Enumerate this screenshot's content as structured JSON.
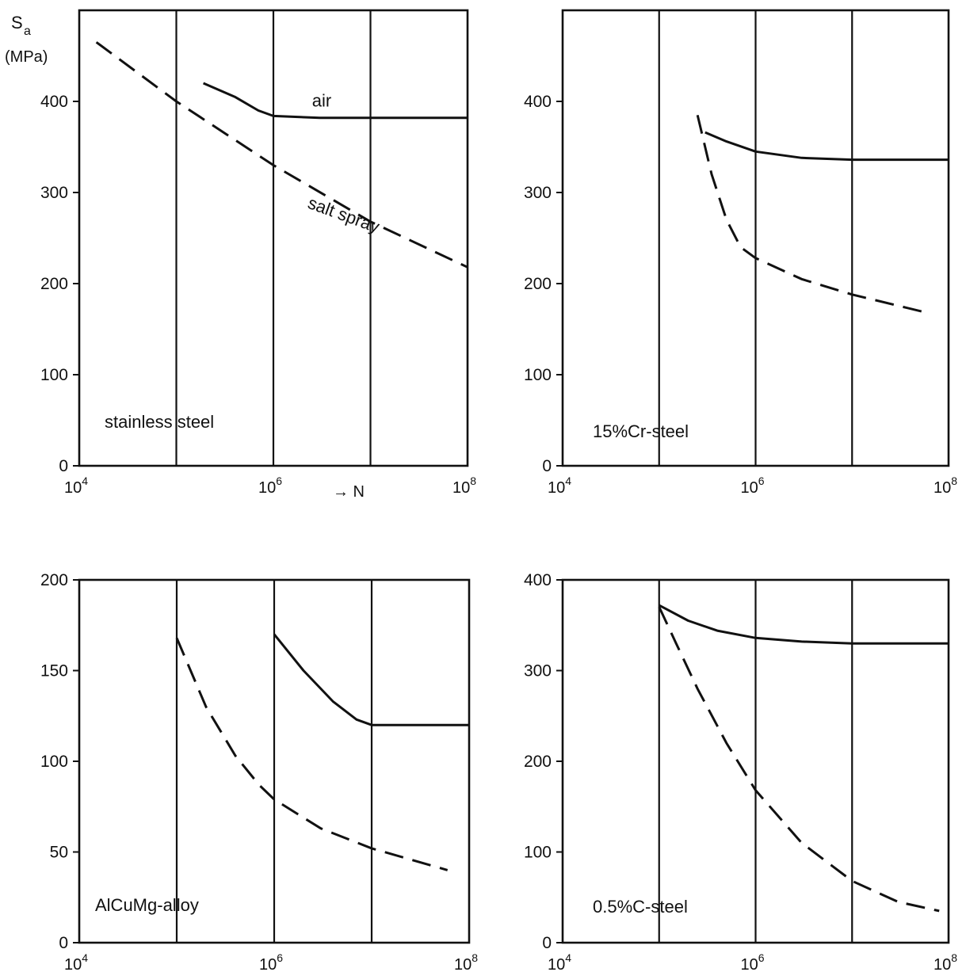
{
  "figure": {
    "ylabel_symbol": "S",
    "ylabel_subscript": "a",
    "ylabel_unit": "(MPa)",
    "xlabel_arrow": "→ N"
  },
  "chart_data": [
    {
      "type": "line",
      "panel": "top-left",
      "annotation": "stainless steel",
      "xscale": "log",
      "xlim": [
        10000,
        100000000
      ],
      "ylim": [
        0,
        500
      ],
      "yticks": [
        0,
        100,
        200,
        300,
        400
      ],
      "xticks": [
        {
          "value": 10000,
          "base": "10",
          "exp": "4"
        },
        {
          "value": 1000000,
          "base": "10",
          "exp": "6"
        },
        {
          "value": 100000000,
          "base": "10",
          "exp": "8"
        }
      ],
      "vgrid": [
        100000,
        1000000,
        10000000
      ],
      "grid": "vertical lines only",
      "series": [
        {
          "name": "air",
          "style": "solid",
          "x": [
            190000,
            400000,
            700000,
            1000000,
            3000000,
            100000000
          ],
          "y": [
            420,
            405,
            390,
            384,
            382,
            382
          ]
        },
        {
          "name": "salt spray",
          "style": "dashed",
          "x": [
            15000,
            100000,
            1000000,
            10000000,
            100000000
          ],
          "y": [
            465,
            400,
            330,
            268,
            218
          ]
        }
      ]
    },
    {
      "type": "line",
      "panel": "top-right",
      "annotation": "15%Cr-steel",
      "xscale": "log",
      "xlim": [
        10000,
        100000000
      ],
      "ylim": [
        0,
        500
      ],
      "yticks": [
        0,
        100,
        200,
        300,
        400
      ],
      "xticks": [
        {
          "value": 10000,
          "base": "10",
          "exp": "4"
        },
        {
          "value": 1000000,
          "base": "10",
          "exp": "6"
        },
        {
          "value": 100000000,
          "base": "10",
          "exp": "8"
        }
      ],
      "vgrid": [
        100000,
        1000000,
        10000000
      ],
      "grid": "vertical lines only",
      "series": [
        {
          "style": "solid",
          "x": [
            300000,
            500000,
            1000000,
            3000000,
            10000000,
            100000000
          ],
          "y": [
            366,
            356,
            345,
            338,
            336,
            336
          ]
        },
        {
          "style": "dashed",
          "x": [
            250000,
            350000,
            500000,
            700000,
            1000000,
            3000000,
            10000000,
            60000000
          ],
          "y": [
            385,
            320,
            270,
            240,
            228,
            205,
            188,
            168
          ]
        }
      ]
    },
    {
      "type": "line",
      "panel": "bottom-left",
      "annotation": "AlCuMg-alloy",
      "xscale": "log",
      "xlim": [
        10000,
        100000000
      ],
      "ylim": [
        0,
        200
      ],
      "yticks": [
        0,
        50,
        100,
        150,
        200
      ],
      "xticks": [
        {
          "value": 10000,
          "base": "10",
          "exp": "4"
        },
        {
          "value": 1000000,
          "base": "10",
          "exp": "6"
        },
        {
          "value": 100000000,
          "base": "10",
          "exp": "8"
        }
      ],
      "vgrid": [
        100000,
        1000000,
        10000000
      ],
      "grid": "vertical lines only",
      "series": [
        {
          "style": "solid",
          "x": [
            1000000,
            2000000,
            4000000,
            7000000,
            10000000,
            100000000
          ],
          "y": [
            170,
            150,
            133,
            123,
            120,
            120
          ]
        },
        {
          "style": "dashed",
          "x": [
            100000,
            200000,
            400000,
            700000,
            1000000,
            3000000,
            10000000,
            60000000
          ],
          "y": [
            168,
            130,
            103,
            87,
            79,
            63,
            52,
            40
          ]
        }
      ]
    },
    {
      "type": "line",
      "panel": "bottom-right",
      "annotation": "0.5%C-steel",
      "xscale": "log",
      "xlim": [
        10000,
        100000000
      ],
      "ylim": [
        0,
        400
      ],
      "yticks": [
        0,
        100,
        200,
        300,
        400
      ],
      "xticks": [
        {
          "value": 10000,
          "base": "10",
          "exp": "4"
        },
        {
          "value": 1000000,
          "base": "10",
          "exp": "6"
        },
        {
          "value": 100000000,
          "base": "10",
          "exp": "8"
        }
      ],
      "vgrid": [
        100000,
        1000000,
        10000000
      ],
      "grid": "vertical lines only",
      "series": [
        {
          "style": "solid",
          "x": [
            100000,
            200000,
            400000,
            1000000,
            3000000,
            10000000,
            100000000
          ],
          "y": [
            372,
            355,
            344,
            336,
            332,
            330,
            330
          ]
        },
        {
          "style": "dashed",
          "x": [
            100000,
            150000,
            250000,
            500000,
            1000000,
            3000000,
            10000000,
            30000000,
            80000000
          ],
          "y": [
            370,
            330,
            280,
            220,
            168,
            110,
            68,
            45,
            35
          ]
        }
      ]
    }
  ]
}
